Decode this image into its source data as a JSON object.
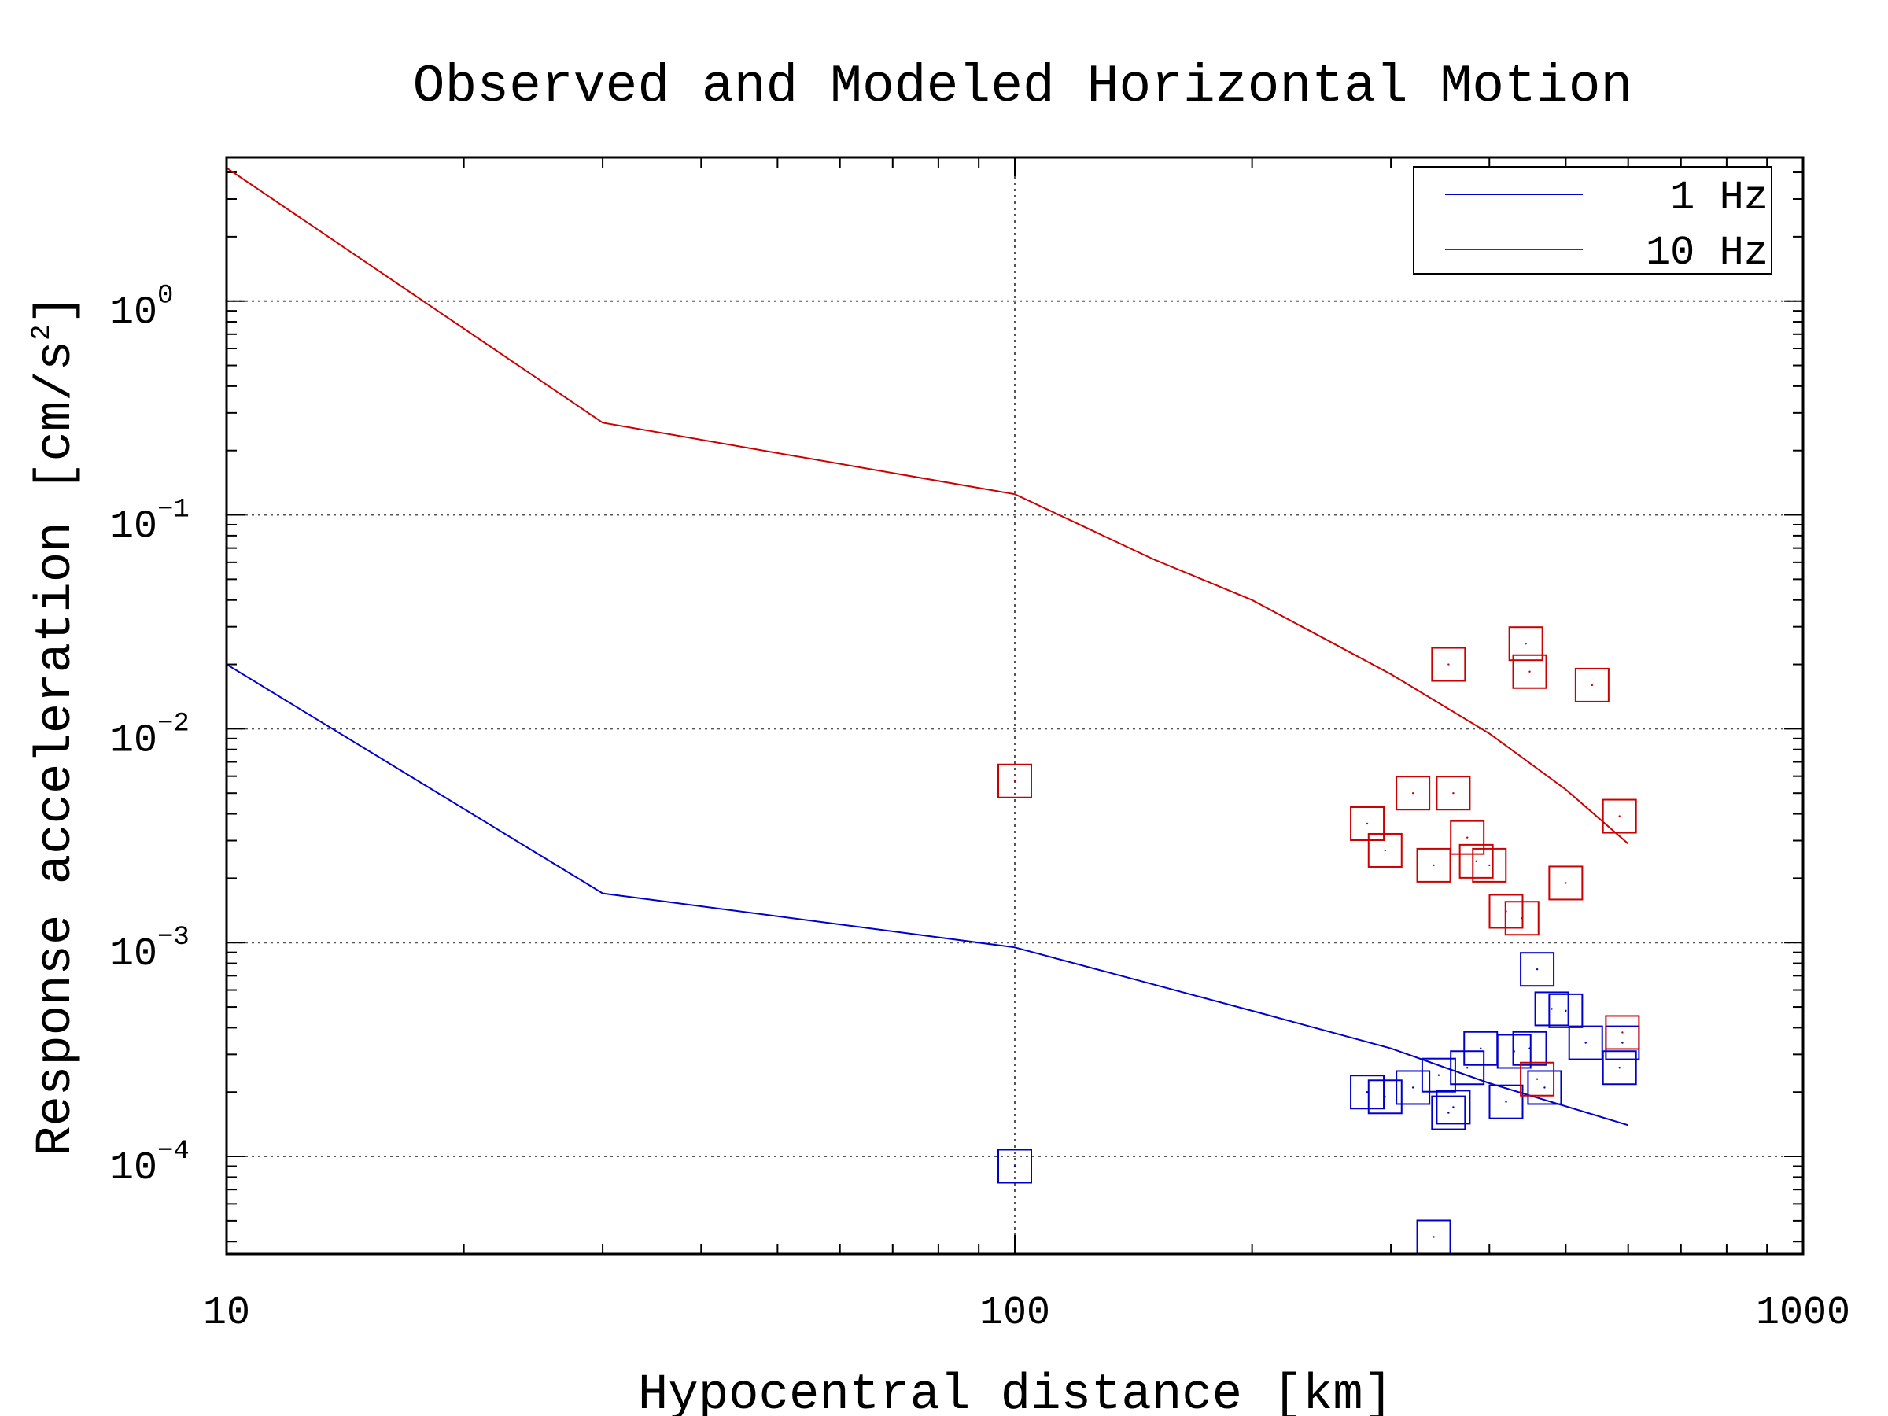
{
  "chart_data": {
    "type": "scatter",
    "title": "Observed and Modeled Horizontal Motion",
    "xlabel": "Hypocentral distance [km]",
    "ylabel_prefix": "Response acceleration [cm/s",
    "ylabel_exp": "2",
    "ylabel_suffix": "]",
    "xscale": "log",
    "yscale": "log",
    "xlim": [
      10,
      1000
    ],
    "ylim": [
      3.5e-05,
      4.7
    ],
    "grid": true,
    "legend_position": "top-right",
    "xticks": [
      {
        "value": 10,
        "label": "10"
      },
      {
        "value": 100,
        "label": "100"
      },
      {
        "value": 1000,
        "label": "1000"
      }
    ],
    "yticks": [
      {
        "value": 1,
        "base": "10",
        "exp": "0"
      },
      {
        "value": 0.1,
        "base": "10",
        "exp": "−1"
      },
      {
        "value": 0.01,
        "base": "10",
        "exp": "−2"
      },
      {
        "value": 0.001,
        "base": "10",
        "exp": "−3"
      },
      {
        "value": 0.0001,
        "base": "10",
        "exp": "−4"
      }
    ],
    "series": [
      {
        "name": "1 Hz",
        "color": "#0000cc",
        "model_line": {
          "x": [
            10,
            30,
            100,
            200,
            300,
            400,
            600
          ],
          "y": [
            0.02,
            0.0017,
            0.00095,
            0.00048,
            0.00032,
            0.00022,
            0.00014
          ]
        },
        "observed": {
          "x": [
            100,
            340,
            280,
            295,
            320,
            345,
            360,
            355,
            375,
            390,
            420,
            430,
            450,
            470,
            460,
            480,
            500,
            530,
            585,
            590
          ],
          "y": [
            9e-05,
            4.2e-05,
            0.0002,
            0.00019,
            0.00021,
            0.00024,
            0.00017,
            0.00016,
            0.00026,
            0.00032,
            0.00018,
            0.00031,
            0.00032,
            0.00021,
            0.00075,
            0.00049,
            0.00048,
            0.00034,
            0.00026,
            0.00034
          ]
        }
      },
      {
        "name": "10 Hz",
        "color": "#cc0000",
        "model_line": {
          "x": [
            10,
            30,
            100,
            150,
            200,
            300,
            400,
            500,
            600
          ],
          "y": [
            4.2,
            0.27,
            0.125,
            0.062,
            0.04,
            0.018,
            0.0095,
            0.0052,
            0.0029
          ]
        },
        "observed": {
          "x": [
            100,
            280,
            295,
            320,
            340,
            355,
            360,
            375,
            385,
            400,
            420,
            440,
            445,
            450,
            460,
            500,
            540,
            585,
            590
          ],
          "y": [
            0.0057,
            0.0036,
            0.0027,
            0.005,
            0.0023,
            0.02,
            0.005,
            0.0031,
            0.0024,
            0.0023,
            0.0014,
            0.0013,
            0.025,
            0.0185,
            0.00023,
            0.0019,
            0.016,
            0.0039,
            0.00038
          ]
        }
      }
    ]
  }
}
